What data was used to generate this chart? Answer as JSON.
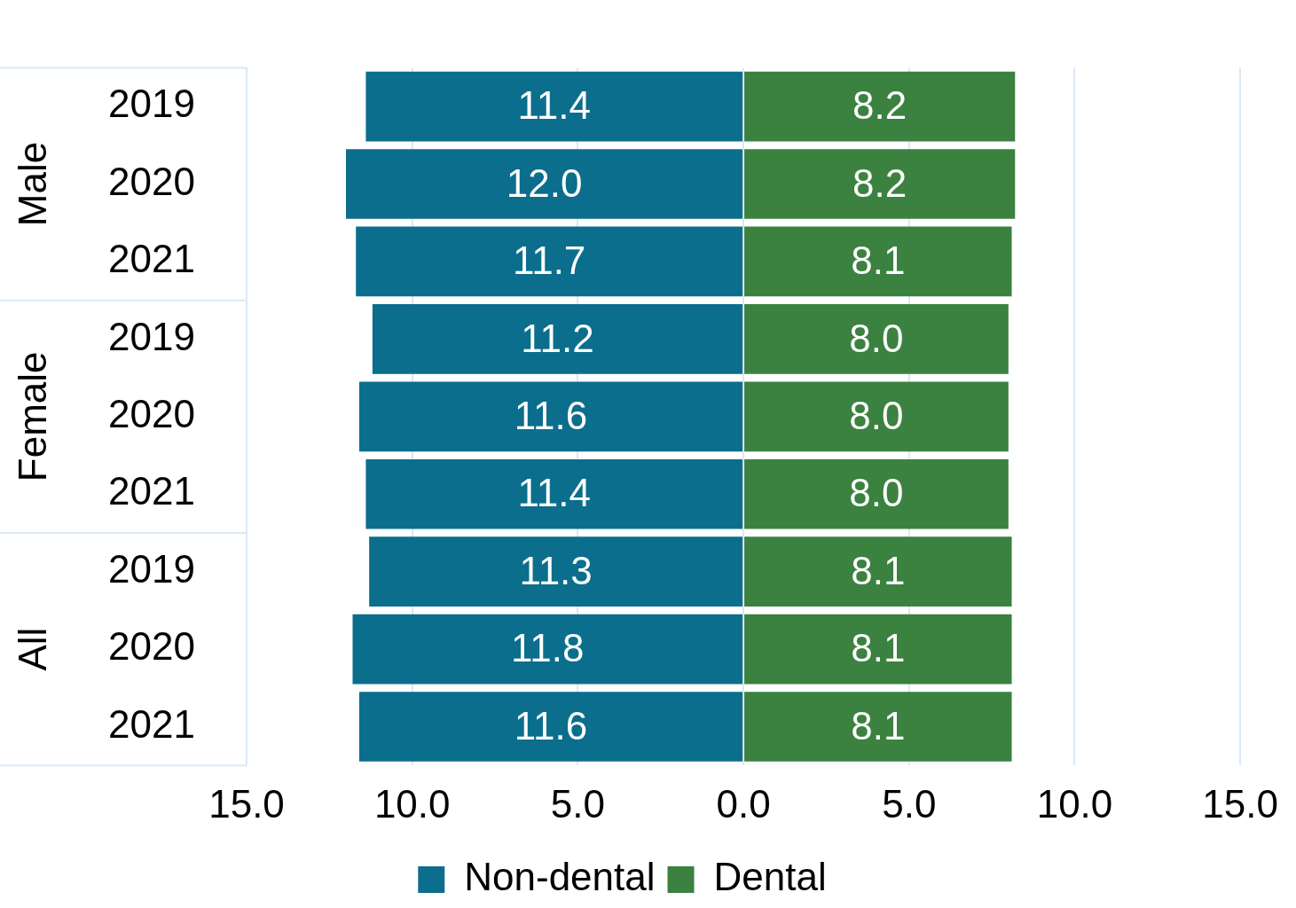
{
  "chart_data": {
    "type": "bar",
    "orientation": "horizontal",
    "categories": [
      "2019",
      "2020",
      "2021",
      "2019",
      "2020",
      "2021",
      "2019",
      "2020",
      "2021"
    ],
    "annotations": [
      "Male",
      "Female",
      "All"
    ],
    "series": [
      {
        "name": "Non-dental",
        "color": "#0b6e8c",
        "values": [
          11.4,
          12.0,
          11.7,
          11.2,
          11.6,
          11.4,
          11.3,
          11.8,
          11.6
        ],
        "base": [
          -11.4,
          -12.0,
          -11.7,
          -11.2,
          -11.6,
          -11.4,
          -11.3,
          -11.8,
          -11.6
        ],
        "value_labels": [
          "11.4",
          "12.0",
          "11.7",
          "11.2",
          "11.6",
          "11.4",
          "11.3",
          "11.8",
          "11.6"
        ]
      },
      {
        "name": "Dental",
        "color": "#3b8140",
        "values": [
          8.2,
          8.2,
          8.1,
          8.0,
          8.0,
          8.0,
          8.1,
          8.1,
          8.1
        ],
        "value_labels": [
          "8.2",
          "8.2",
          "8.1",
          "8.0",
          "8.0",
          "8.0",
          "8.1",
          "8.1",
          "8.1"
        ]
      }
    ],
    "xlim": [
      -15,
      15
    ],
    "xticks": [
      {
        "value": -15,
        "label": "15.0"
      },
      {
        "value": -10,
        "label": "10.0"
      },
      {
        "value": -5,
        "label": "5.0"
      },
      {
        "value": 0,
        "label": "0.0"
      },
      {
        "value": 5,
        "label": "5.0"
      },
      {
        "value": 10,
        "label": "10.0"
      },
      {
        "value": 15,
        "label": "15.0"
      }
    ],
    "grid": "x",
    "legend": "bottom"
  }
}
